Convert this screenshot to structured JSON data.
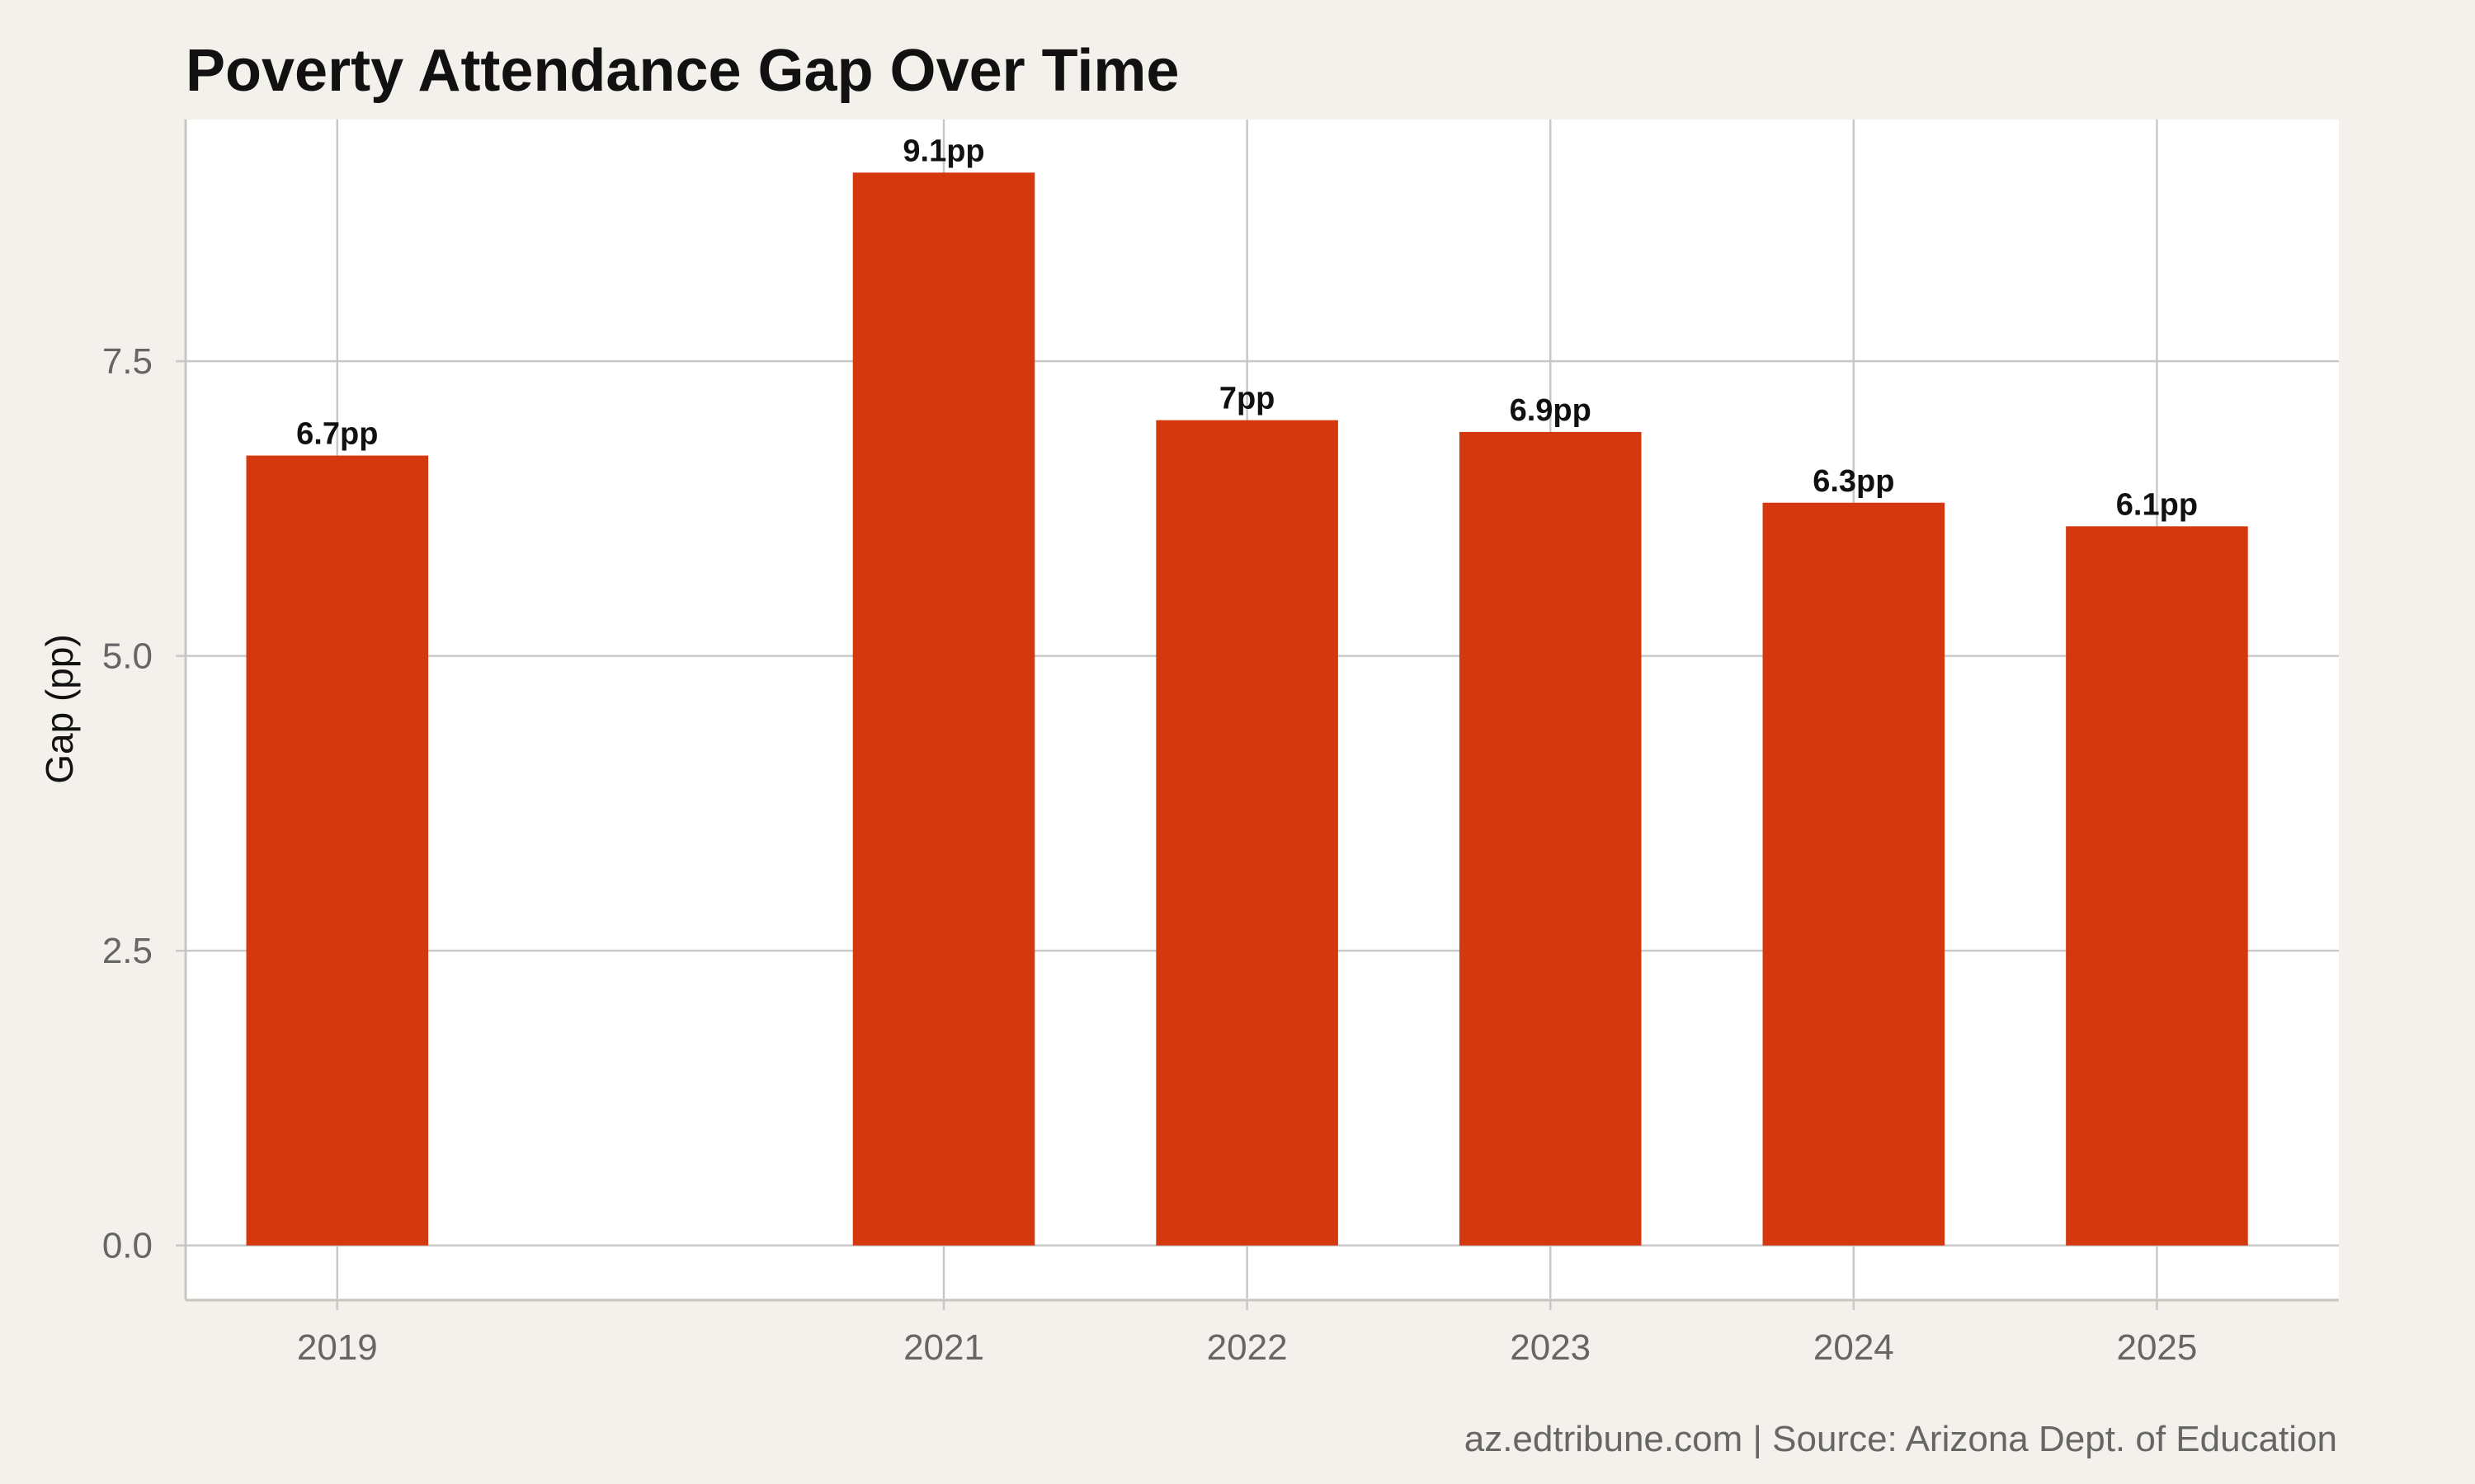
{
  "chart_data": {
    "type": "bar",
    "title": "Poverty Attendance Gap Over Time",
    "xlabel": "",
    "ylabel": "Gap (pp)",
    "categories": [
      "2019",
      "2021",
      "2022",
      "2023",
      "2024",
      "2025"
    ],
    "x": [
      2019,
      2021,
      2022,
      2023,
      2024,
      2025
    ],
    "xlim": [
      2018.5,
      2025.6
    ],
    "values": [
      6.7,
      9.1,
      7.0,
      6.9,
      6.3,
      6.1
    ],
    "data_labels": [
      "6.7pp",
      "9.1pp",
      "7pp",
      "6.9pp",
      "6.3pp",
      "6.1pp"
    ],
    "ylim": [
      -0.45,
      9.55
    ],
    "yticks": [
      0.0,
      2.5,
      5.0,
      7.5
    ],
    "ytick_labels": [
      "0.0",
      "2.5",
      "5.0",
      "7.5"
    ],
    "grid": true,
    "legend": "none",
    "caption": "az.edtribune.com | Source: Arizona Dept. of Education",
    "colors": {
      "bar": "#d4380e",
      "background": "#f4f1ec",
      "panel": "#ffffff",
      "grid": "#c8c8c8",
      "axis": "#c8c6bf"
    }
  }
}
